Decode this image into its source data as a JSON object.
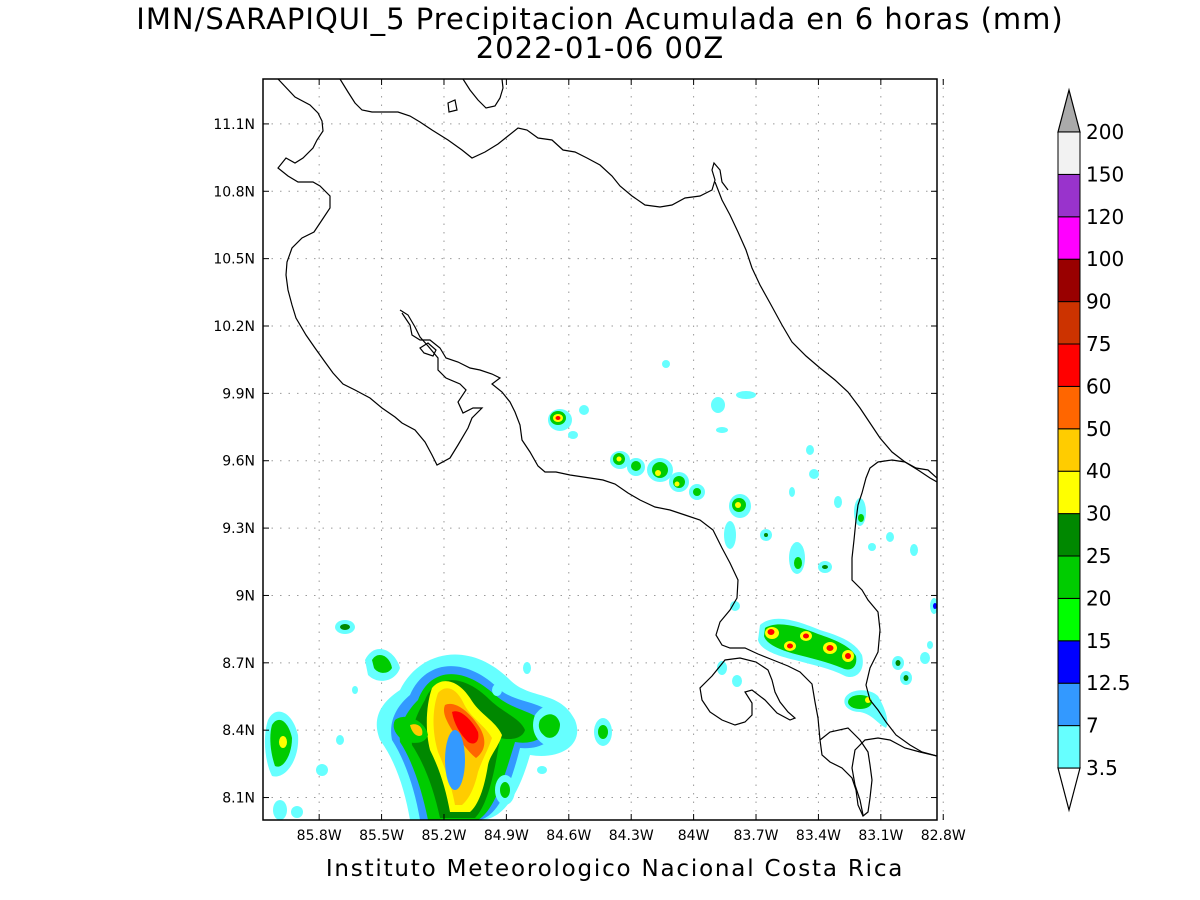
{
  "title": "IMN/SARAPIQUI_5 Precipitacion Acumulada en 6 horas (mm)",
  "subtitle": "2022-01-06 00Z",
  "footer": "Instituto Meteorologico Nacional Costa Rica",
  "map": {
    "lon_range": [
      -86.07,
      -82.83
    ],
    "lat_range": [
      8.0,
      11.3
    ],
    "lat_ticks": [
      "11.1N",
      "10.8N",
      "10.5N",
      "10.2N",
      "9.9N",
      "9.6N",
      "9.3N",
      "9N",
      "8.7N",
      "8.4N",
      "8.1N"
    ],
    "lon_ticks": [
      "85.8W",
      "85.5W",
      "85.2W",
      "84.9W",
      "84.6W",
      "84.3W",
      "84W",
      "83.7W",
      "83.4W",
      "83.1W",
      "82.8W"
    ],
    "grid": true
  },
  "colorbar": {
    "levels": [
      "3.5",
      "7",
      "12.5",
      "15",
      "20",
      "25",
      "30",
      "40",
      "50",
      "60",
      "75",
      "90",
      "100",
      "120",
      "150",
      "200"
    ],
    "colors": [
      "#ffffff",
      "#66ffff",
      "#3399ff",
      "#0000ff",
      "#00ff00",
      "#00cc00",
      "#008800",
      "#ffff00",
      "#ffcc00",
      "#ff6600",
      "#ff0000",
      "#cc3300",
      "#990000",
      "#ff00ff",
      "#9933cc",
      "#f2f2f2",
      "#aaaaaa"
    ]
  }
}
